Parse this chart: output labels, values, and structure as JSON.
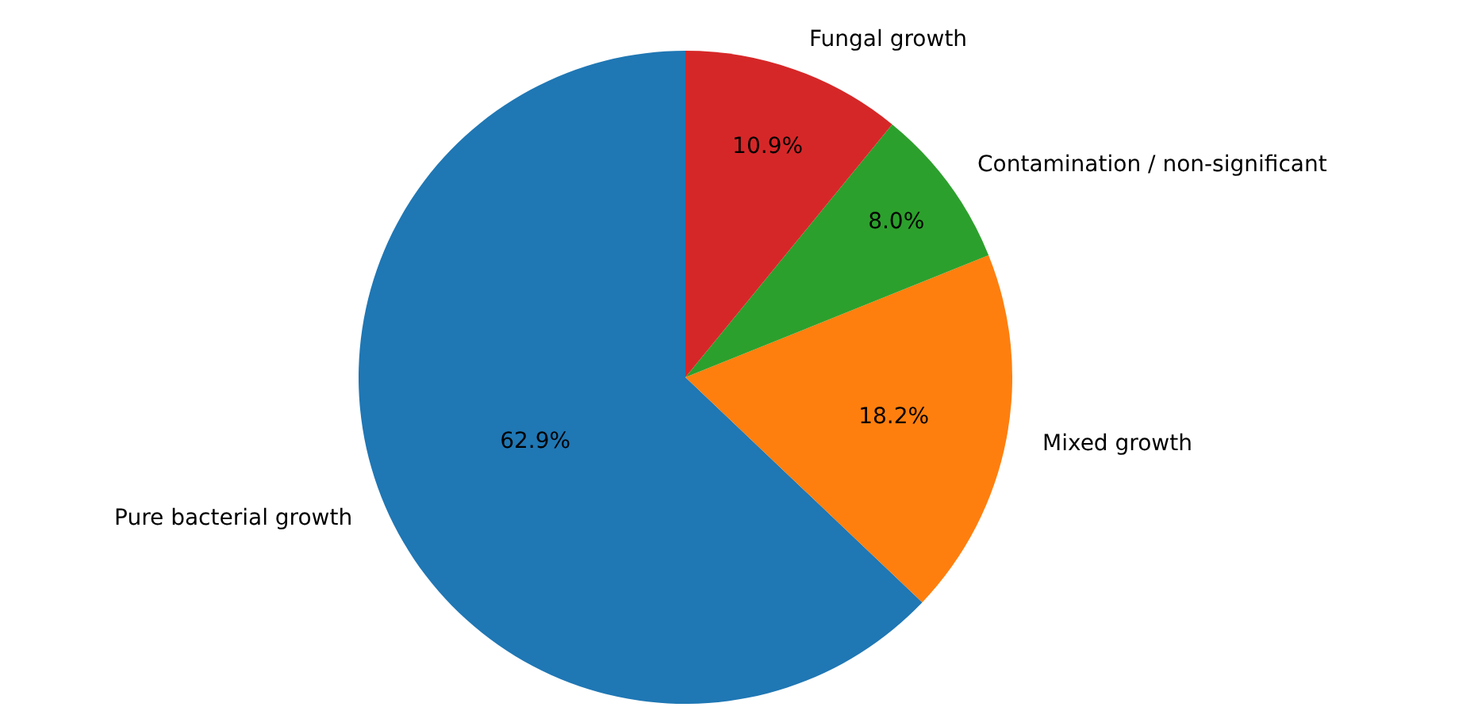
{
  "chart_data": {
    "type": "pie",
    "categories": [
      "Pure bacterial growth",
      "Mixed growth",
      "Contamination / non-significant",
      "Fungal growth"
    ],
    "values": [
      62.9,
      18.2,
      8.0,
      10.9
    ],
    "value_labels": [
      "62.9%",
      "18.2%",
      "8.0%",
      "10.9%"
    ],
    "colors": [
      "#1f77b4",
      "#ff7f0e",
      "#2ca02c",
      "#d62728"
    ]
  }
}
